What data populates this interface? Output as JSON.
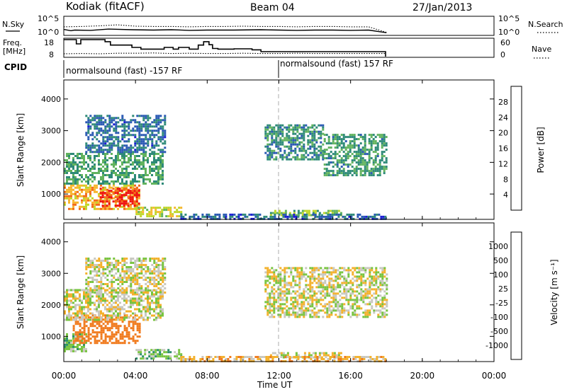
{
  "header": {
    "station": "Kodiak (fitACF)",
    "beam": "Beam 04",
    "date": "27/Jan/2013"
  },
  "side_labels": {
    "nsky": "N.Sky",
    "nsearch": "N.Search",
    "freq_line1": "Freq.",
    "freq_line2": "[MHz]",
    "nave": "Nave",
    "cpid": "CPID"
  },
  "cpid_segments": [
    {
      "label": "normalsound (fast) -157 RF",
      "start_hour": 0
    },
    {
      "label": "normalsound (fast) 157 RF",
      "start_hour": 12
    }
  ],
  "x_axis": {
    "title": "Time UT",
    "ticks": [
      "00:00",
      "04:00",
      "08:00",
      "12:00",
      "16:00",
      "20:00",
      "00:00"
    ],
    "tick_hours": [
      0,
      4,
      8,
      12,
      16,
      20,
      24
    ],
    "range": [
      0,
      24
    ]
  },
  "noise_panel": {
    "left_ticks": [
      "10^5",
      "10^0"
    ],
    "right_ticks": [
      "10^5",
      "10^0"
    ]
  },
  "freq_panel": {
    "left_ticks": [
      "18",
      "8"
    ],
    "right_ticks": [
      "60",
      "0"
    ]
  },
  "power_colorbar": {
    "label": "Power [dB]",
    "ticks": [
      "28",
      "24",
      "20",
      "16",
      "12",
      "8",
      "4"
    ],
    "colors": [
      "#ee1111",
      "#f36b18",
      "#f7b62d",
      "#bfd62a",
      "#62b35e",
      "#2e8a78",
      "#2a59b3",
      "#1b1bd6"
    ]
  },
  "velocity_colorbar": {
    "label": "Velocity [m s⁻¹]",
    "ticks": [
      "1000",
      "500",
      "100",
      "25",
      "-25",
      "-100",
      "-500",
      "-1000"
    ],
    "colors": [
      "#1d2fa8",
      "#3a7bc0",
      "#2c8f6a",
      "#77c43f",
      "#c8c8c0",
      "#f3b12c",
      "#f07a1d",
      "#e94b17",
      "#e01010"
    ]
  },
  "chart_data": [
    {
      "type": "line",
      "name": "noise",
      "x_unit": "hours UT",
      "series": [
        {
          "name": "N.Sky",
          "style": "solid",
          "x": [
            0,
            0.4,
            0.6,
            1.5,
            2.5,
            3.8,
            5,
            6,
            7,
            8,
            9.5,
            11,
            12,
            13,
            14,
            15,
            16,
            17,
            18
          ],
          "log10_values": [
            1.4,
            1.0,
            1.2,
            1.1,
            1.5,
            1.3,
            1.2,
            1.3,
            1.1,
            1.2,
            1.2,
            1.3,
            1.2,
            1.1,
            1.2,
            1.2,
            1.1,
            1.2,
            0.4
          ]
        },
        {
          "name": "N.Search",
          "style": "dotted",
          "x": [
            0,
            1,
            2,
            3,
            4,
            5,
            6,
            7,
            8,
            9,
            10,
            11,
            12,
            13,
            14,
            15,
            16,
            17,
            18
          ],
          "log10_values": [
            2.2,
            2.3,
            2.5,
            2.8,
            2.4,
            2.3,
            2.3,
            2.2,
            2.3,
            2.3,
            2.4,
            2.3,
            2.3,
            2.2,
            2.3,
            2.3,
            2.2,
            2.2,
            0.5
          ]
        }
      ],
      "ylim_log10": [
        0,
        5
      ]
    },
    {
      "type": "line",
      "name": "frequency_nave",
      "x_unit": "hours UT",
      "series": [
        {
          "name": "Freq. [MHz]",
          "style": "step",
          "x": [
            0,
            0.7,
            0.95,
            2.3,
            2.6,
            3.8,
            4.3,
            5.6,
            6.1,
            6.4,
            7.0,
            7.5,
            7.8,
            8.1,
            8.3,
            8.6,
            9.0,
            9.5,
            10.5,
            11.0,
            17.95
          ],
          "values": [
            18.0,
            15.5,
            18.0,
            16.8,
            14.8,
            13.4,
            12.4,
            13.4,
            12.4,
            13.4,
            12.4,
            14.8,
            16.8,
            15.0,
            12.8,
            12.4,
            12.4,
            12.6,
            12.0,
            10.9,
            9.7
          ],
          "ylim": [
            8,
            18
          ]
        },
        {
          "name": "Nave",
          "style": "dotted",
          "x": [
            0,
            1,
            2,
            3,
            4,
            5,
            6,
            7,
            8,
            9,
            10,
            11,
            12,
            13,
            14,
            15,
            16,
            17,
            17.95
          ],
          "values": [
            10,
            11,
            10,
            12,
            12,
            13,
            11,
            12,
            11,
            11,
            12,
            11,
            11,
            12,
            11,
            11,
            11,
            11,
            11
          ],
          "ylim": [
            0,
            60
          ]
        }
      ]
    },
    {
      "type": "heatmap",
      "name": "power",
      "x_unit": "hours UT",
      "ylabel": "Slant Range [km]",
      "ylim": [
        200,
        4600
      ],
      "yticks": [
        1000,
        2000,
        3000,
        4000
      ],
      "value_range_db": [
        0,
        30
      ],
      "regions": [
        {
          "x0": 0.0,
          "x1": 4.2,
          "y0": 500,
          "y1": 1300,
          "level_db": 22
        },
        {
          "x0": 2.0,
          "x1": 4.2,
          "y0": 600,
          "y1": 1200,
          "level_db": 29
        },
        {
          "x0": 0.0,
          "x1": 5.5,
          "y0": 1300,
          "y1": 2300,
          "level_db": 11
        },
        {
          "x0": 1.2,
          "x1": 5.6,
          "y0": 2300,
          "y1": 3500,
          "level_db": 6
        },
        {
          "x0": 4.0,
          "x1": 6.6,
          "y0": 300,
          "y1": 600,
          "level_db": 18
        },
        {
          "x0": 11.2,
          "x1": 14.5,
          "y0": 2100,
          "y1": 3200,
          "level_db": 9
        },
        {
          "x0": 14.5,
          "x1": 18.0,
          "y0": 1600,
          "y1": 2900,
          "level_db": 10
        },
        {
          "x0": 11.5,
          "x1": 15.5,
          "y0": 300,
          "y1": 500,
          "level_db": 14
        },
        {
          "x0": 6.5,
          "x1": 18.0,
          "y0": 200,
          "y1": 380,
          "level_db": 5
        }
      ]
    },
    {
      "type": "heatmap",
      "name": "velocity",
      "x_unit": "hours UT",
      "ylabel": "Slant Range [km]",
      "ylim": [
        200,
        4600
      ],
      "yticks": [
        1000,
        2000,
        3000,
        4000
      ],
      "value_range_ms": [
        -1000,
        1000
      ],
      "regions": [
        {
          "x0": 0.0,
          "x1": 1.2,
          "y0": 500,
          "y1": 1100,
          "level_ms": 60
        },
        {
          "x0": 0.5,
          "x1": 4.2,
          "y0": 800,
          "y1": 1700,
          "level_ms": -300
        },
        {
          "x0": 0.0,
          "x1": 5.5,
          "y0": 1500,
          "y1": 2500,
          "level_ms": 0
        },
        {
          "x0": 1.2,
          "x1": 5.6,
          "y0": 2400,
          "y1": 3500,
          "level_ms": 0
        },
        {
          "x0": 4.0,
          "x1": 6.6,
          "y0": 300,
          "y1": 600,
          "level_ms": 60
        },
        {
          "x0": 11.2,
          "x1": 18.0,
          "y0": 1600,
          "y1": 3200,
          "level_ms": 0
        },
        {
          "x0": 11.5,
          "x1": 15.5,
          "y0": 300,
          "y1": 500,
          "level_ms": 0
        },
        {
          "x0": 6.5,
          "x1": 18.0,
          "y0": 200,
          "y1": 380,
          "level_ms": -60
        }
      ]
    }
  ]
}
